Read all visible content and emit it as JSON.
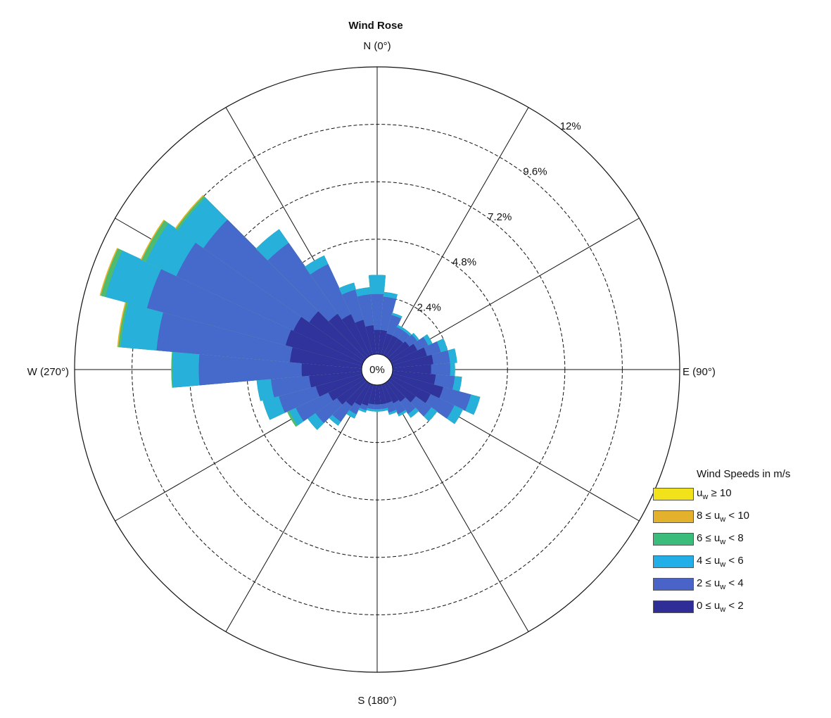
{
  "chart_data": {
    "type": "wind-rose",
    "title": "Wind Rose",
    "direction_labels": {
      "north": "N (0°)",
      "east": "E (90°)",
      "south": "S (180°)",
      "west": "W (270°)"
    },
    "radial_ticks": [
      "0%",
      "2.4%",
      "4.8%",
      "7.2%",
      "9.6%",
      "12%"
    ],
    "radial_tick_values": [
      0,
      2.4,
      4.8,
      7.2,
      9.6,
      12
    ],
    "rmax": 12,
    "sector_width_deg": 10,
    "legend_title": "Wind Speeds in m/s",
    "bins": [
      {
        "name": "u_w ≥ 10",
        "color": "#f2e21b"
      },
      {
        "name": "8 ≤ u_w < 10",
        "color": "#e3b12b"
      },
      {
        "name": "6 ≤ u_w < 8",
        "color": "#3cbc7a"
      },
      {
        "name": "4 ≤ u_w < 6",
        "color": "#22aee6"
      },
      {
        "name": "2 ≤ u_w < 4",
        "color": "#4a63c9"
      },
      {
        "name": "0 ≤ u_w < 2",
        "color": "#2e2e96"
      }
    ],
    "sectors": [
      {
        "dir": 0,
        "cumulative": [
          1.0,
          2.5,
          3.3,
          3.3,
          3.3,
          3.3
        ]
      },
      {
        "dir": 10,
        "cumulative": [
          1.0,
          2.4,
          2.6,
          2.6,
          2.6,
          2.6
        ]
      },
      {
        "dir": 20,
        "cumulative": [
          0.9,
          1.7,
          1.8,
          1.8,
          1.8,
          1.8
        ]
      },
      {
        "dir": 30,
        "cumulative": [
          0.9,
          1.3,
          1.4,
          1.4,
          1.4,
          1.4
        ]
      },
      {
        "dir": 40,
        "cumulative": [
          0.9,
          1.3,
          1.4,
          1.4,
          1.4,
          1.4
        ]
      },
      {
        "dir": 50,
        "cumulative": [
          1.0,
          1.4,
          1.5,
          1.5,
          1.5,
          1.5
        ]
      },
      {
        "dir": 60,
        "cumulative": [
          1.2,
          1.7,
          1.9,
          1.9,
          1.9,
          1.9
        ]
      },
      {
        "dir": 70,
        "cumulative": [
          1.5,
          2.1,
          2.4,
          2.4,
          2.4,
          2.4
        ]
      },
      {
        "dir": 80,
        "cumulative": [
          1.7,
          2.4,
          2.7,
          2.7,
          2.7,
          2.7
        ]
      },
      {
        "dir": 90,
        "cumulative": [
          1.6,
          2.4,
          2.6,
          2.6,
          2.6,
          2.6
        ]
      },
      {
        "dir": 100,
        "cumulative": [
          1.8,
          2.6,
          2.9,
          2.9,
          2.9,
          2.9
        ]
      },
      {
        "dir": 110,
        "cumulative": [
          2.2,
          3.4,
          3.8,
          3.8,
          3.8,
          3.8
        ]
      },
      {
        "dir": 120,
        "cumulative": [
          1.8,
          2.9,
          3.3,
          3.3,
          3.3,
          3.3
        ]
      },
      {
        "dir": 130,
        "cumulative": [
          1.3,
          2.1,
          2.4,
          2.4,
          2.4,
          2.4
        ]
      },
      {
        "dir": 140,
        "cumulative": [
          1.0,
          1.6,
          1.8,
          1.8,
          1.8,
          1.8
        ]
      },
      {
        "dir": 150,
        "cumulative": [
          0.9,
          1.4,
          1.5,
          1.5,
          1.5,
          1.5
        ]
      },
      {
        "dir": 160,
        "cumulative": [
          0.8,
          1.2,
          1.3,
          1.3,
          1.3,
          1.3
        ]
      },
      {
        "dir": 170,
        "cumulative": [
          0.8,
          1.0,
          1.1,
          1.1,
          1.1,
          1.1
        ]
      },
      {
        "dir": 180,
        "cumulative": [
          0.8,
          1.0,
          1.1,
          1.1,
          1.1,
          1.1
        ]
      },
      {
        "dir": 190,
        "cumulative": [
          0.8,
          1.0,
          1.1,
          1.1,
          1.1,
          1.1
        ]
      },
      {
        "dir": 200,
        "cumulative": [
          0.9,
          1.1,
          1.2,
          1.2,
          1.2,
          1.2
        ]
      },
      {
        "dir": 210,
        "cumulative": [
          1.0,
          1.4,
          1.6,
          1.6,
          1.6,
          1.6
        ]
      },
      {
        "dir": 220,
        "cumulative": [
          1.2,
          2.0,
          2.2,
          2.2,
          2.2,
          2.2
        ]
      },
      {
        "dir": 230,
        "cumulative": [
          1.4,
          2.5,
          2.9,
          2.9,
          2.9,
          2.9
        ]
      },
      {
        "dir": 240,
        "cumulative": [
          1.6,
          3.1,
          3.4,
          3.5,
          3.5,
          3.5
        ]
      },
      {
        "dir": 250,
        "cumulative": [
          2.0,
          3.6,
          4.3,
          4.3,
          4.3,
          4.3
        ]
      },
      {
        "dir": 260,
        "cumulative": [
          2.2,
          3.8,
          4.4,
          4.4,
          4.4,
          4.4
        ]
      },
      {
        "dir": 270,
        "cumulative": [
          2.5,
          6.8,
          7.9,
          7.95,
          7.95,
          7.95
        ]
      },
      {
        "dir": 280,
        "cumulative": [
          3.0,
          8.6,
          10.1,
          10.2,
          10.25,
          10.25
        ]
      },
      {
        "dir": 290,
        "cumulative": [
          3.3,
          9.3,
          11.1,
          11.3,
          11.35,
          11.35
        ]
      },
      {
        "dir": 300,
        "cumulative": [
          3.2,
          8.6,
          10.0,
          10.2,
          10.25,
          10.25
        ]
      },
      {
        "dir": 310,
        "cumulative": [
          2.8,
          8.2,
          9.5,
          9.6,
          9.65,
          9.65
        ]
      },
      {
        "dir": 320,
        "cumulative": [
          2.2,
          5.8,
          6.5,
          6.5,
          6.5,
          6.5
        ]
      },
      {
        "dir": 330,
        "cumulative": [
          1.9,
          4.2,
          4.6,
          4.6,
          4.6,
          4.6
        ]
      },
      {
        "dir": 340,
        "cumulative": [
          1.5,
          2.8,
          3.1,
          3.1,
          3.1,
          3.1
        ]
      },
      {
        "dir": 350,
        "cumulative": [
          1.2,
          2.5,
          2.8,
          2.8,
          2.8,
          2.8
        ]
      }
    ],
    "grid": true
  }
}
